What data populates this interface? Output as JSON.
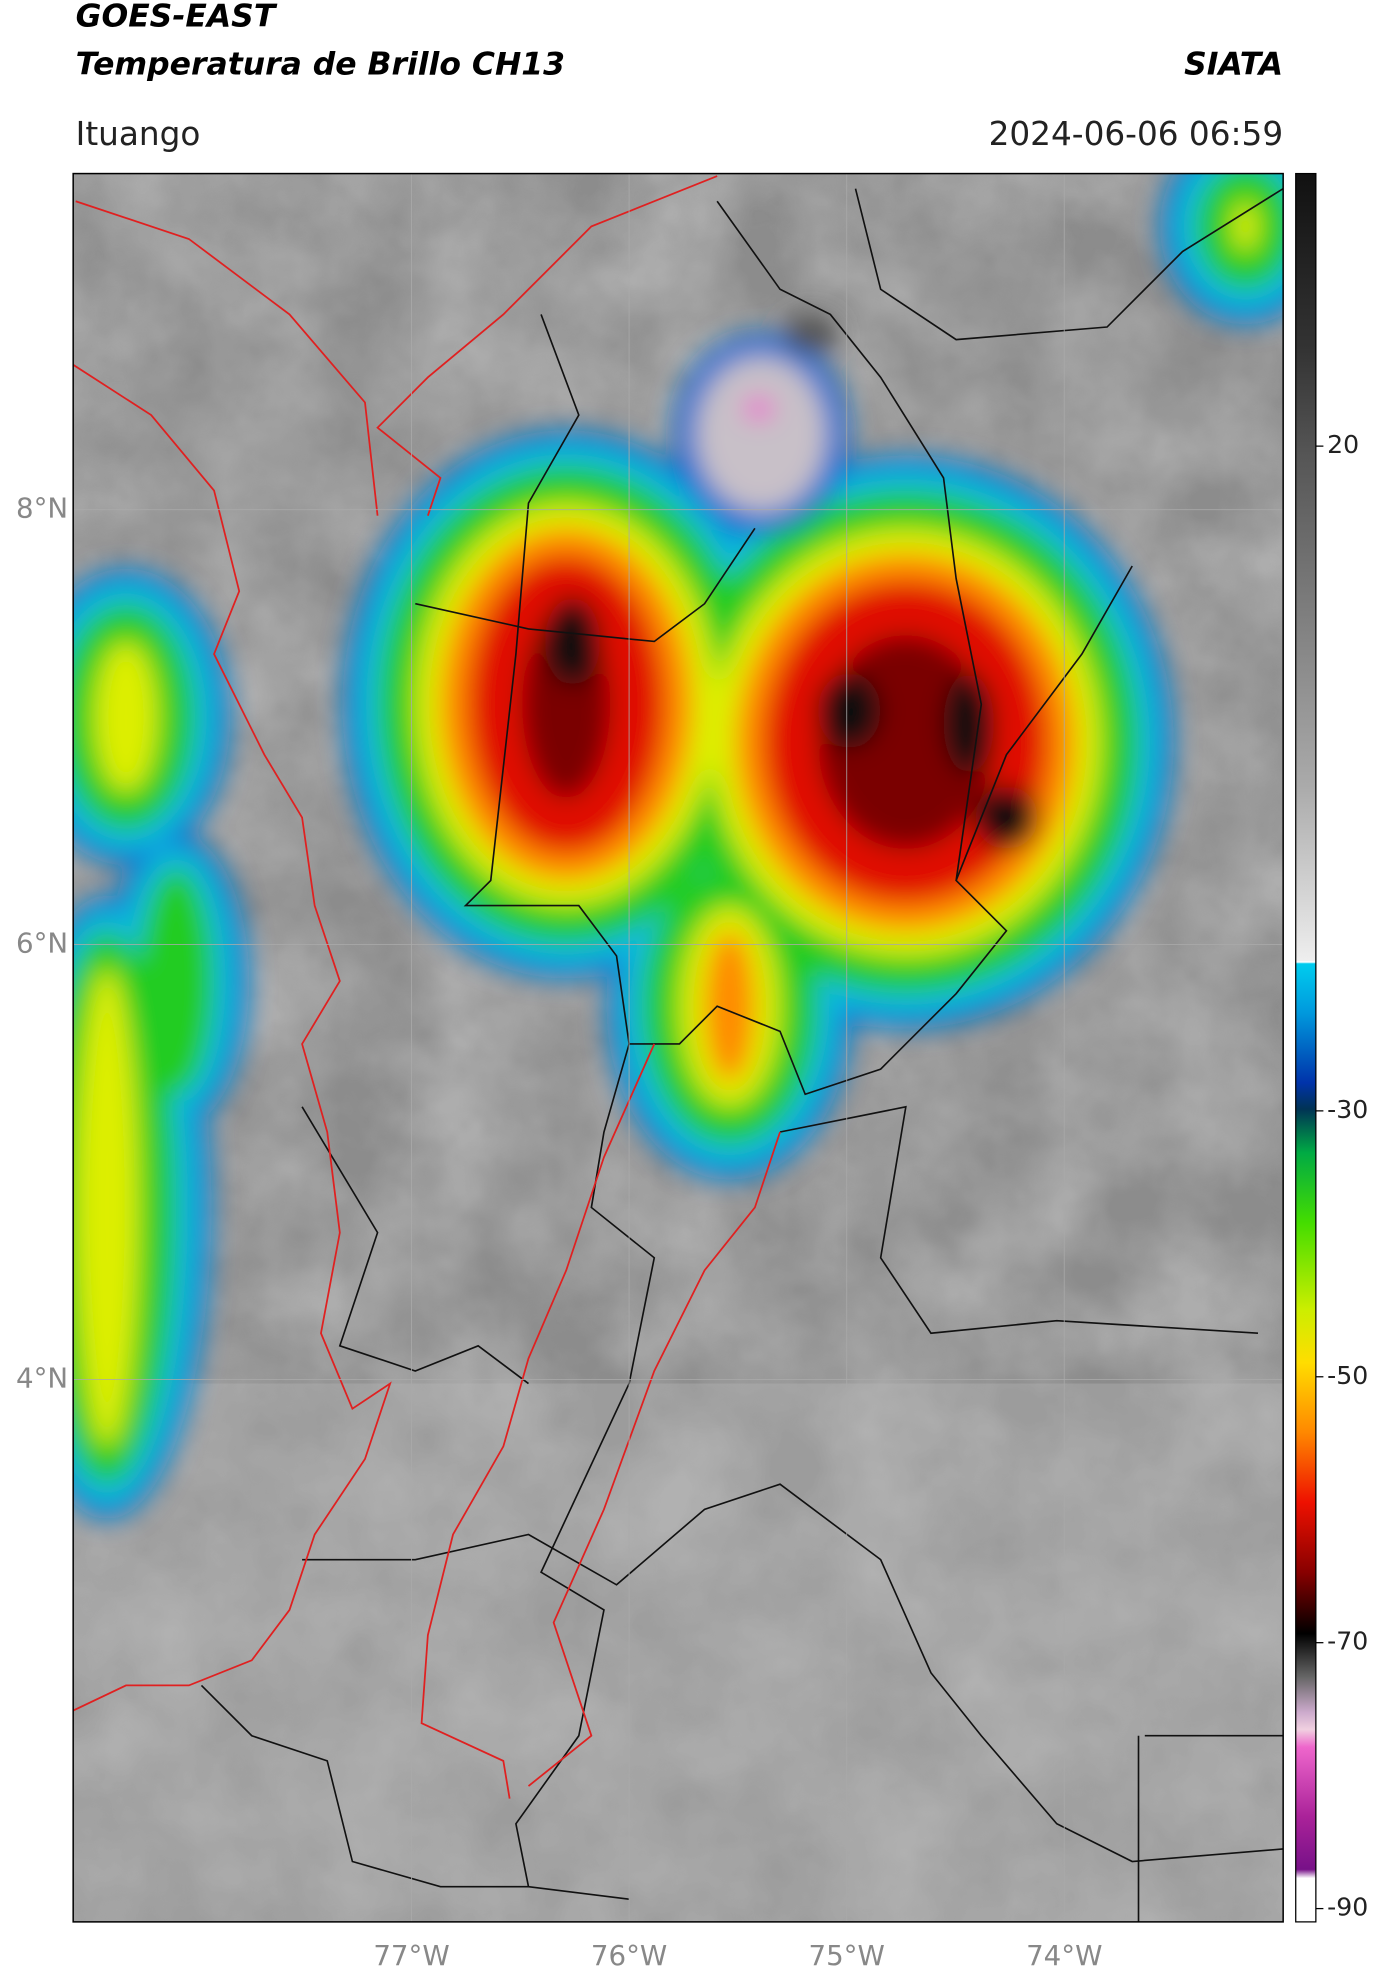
{
  "header": {
    "title": "GOES-EAST",
    "subtitle": "Temperatura de Brillo CH13",
    "brand": "SIATA",
    "location": "Ituango",
    "datetime": "2024-06-06 06:59"
  },
  "map": {
    "xlim": [
      -78.555,
      -72.994
    ],
    "ylim": [
      1.506,
      9.545
    ],
    "xticks": [
      {
        "value": -77,
        "label": "77°W"
      },
      {
        "value": -76,
        "label": "76°W"
      },
      {
        "value": -75,
        "label": "75°W"
      },
      {
        "value": -74,
        "label": "74°W"
      }
    ],
    "yticks": [
      {
        "value": 8,
        "label": "8°N"
      },
      {
        "value": 6,
        "label": "6°N"
      },
      {
        "value": 4,
        "label": "4°N"
      }
    ]
  },
  "colorbar": {
    "lim": [
      -91,
      40.5
    ],
    "ticks": [
      20,
      -30,
      -50,
      -70,
      -90
    ]
  }
}
